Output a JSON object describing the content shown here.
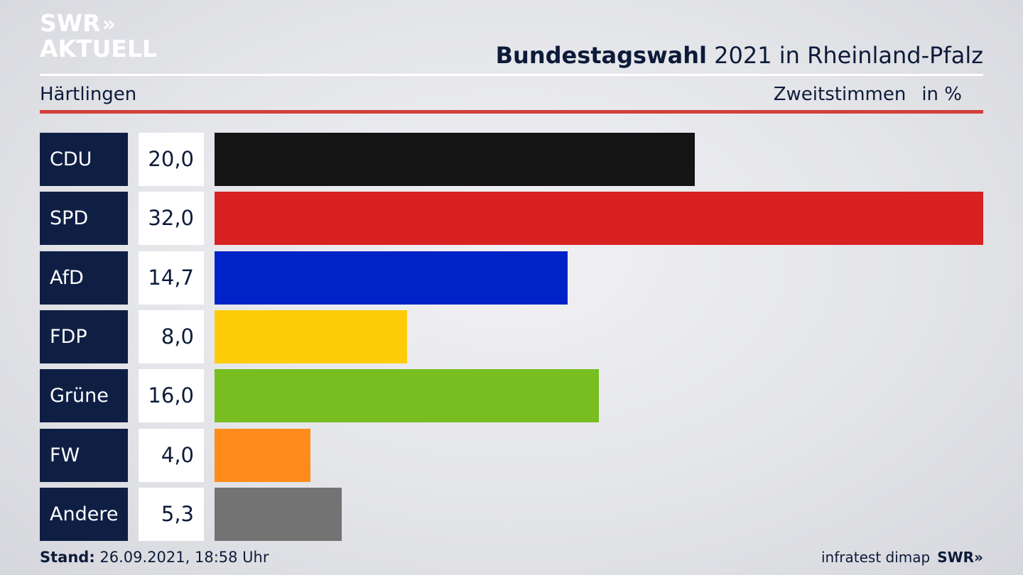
{
  "brand": {
    "line1": "SWR",
    "line1_suffix": "»",
    "line2": "AKTUELL",
    "color": "#ffffff"
  },
  "header": {
    "title_bold": "Bundestagswahl",
    "title_rest": " 2021 in Rheinland-Pfalz",
    "region": "Härtlingen",
    "metric": "Zweitstimmen",
    "unit": "in %"
  },
  "chart_data": {
    "type": "bar",
    "orientation": "horizontal",
    "categories": [
      "CDU",
      "SPD",
      "AfD",
      "FDP",
      "Grüne",
      "FW",
      "Andere"
    ],
    "values": [
      20.0,
      32.0,
      14.7,
      8.0,
      16.0,
      4.0,
      5.3
    ],
    "value_labels": [
      "20,0",
      "32,0",
      "14,7",
      "8,0",
      "16,0",
      "4,0",
      "5,3"
    ],
    "colors": [
      "#141414",
      "#d92121",
      "#0023c8",
      "#ffcc0a",
      "#78be20",
      "#ff8c1a",
      "#737373"
    ],
    "title": "",
    "xlabel": "",
    "ylabel": "",
    "xlim": [
      0,
      32
    ],
    "grid": false,
    "legend": "none"
  },
  "footer": {
    "stand_label": "Stand:",
    "stand_value": " 26.09.2021, 18:58 Uhr",
    "source": "infratest dimap",
    "brand": "SWR»"
  }
}
